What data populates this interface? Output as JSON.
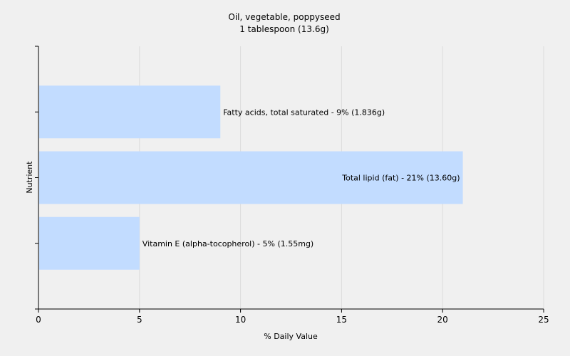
{
  "chart_data": {
    "type": "bar",
    "orientation": "horizontal",
    "title": "Oil, vegetable, poppyseed",
    "subtitle": "1 tablespoon (13.6g)",
    "xlabel": "% Daily Value",
    "ylabel": "Nutrient",
    "xlim": [
      0,
      25
    ],
    "xticks": [
      0,
      5,
      10,
      15,
      20,
      25
    ],
    "grid": true,
    "bar_color": "#c2dcff",
    "bars": [
      {
        "label": "Fatty acids, total saturated - 9% (1.836g)",
        "value": 9
      },
      {
        "label": "Total lipid (fat) - 21% (13.60g)",
        "value": 21
      },
      {
        "label": "Vitamin E (alpha-tocopherol) - 5% (1.55mg)",
        "value": 5
      }
    ]
  }
}
